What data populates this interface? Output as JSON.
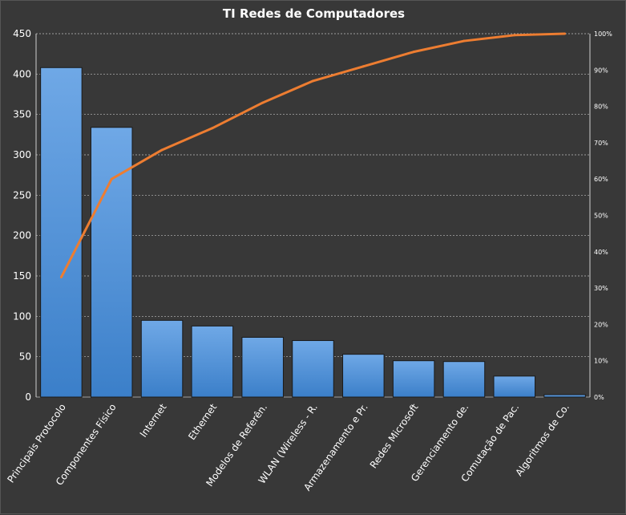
{
  "chart_data": {
    "type": "bar",
    "title": "TI Redes de Computadores",
    "xlabel": "",
    "ylabel": "",
    "categories": [
      "Principais Protocolo",
      "Componentes Físico",
      "Internet",
      "Ethernet",
      "Modelos de Referên.",
      "WLAN (Wireless - R.",
      "Armazenamento e Pr.",
      "Redes Microsoft",
      "Gerenciamento de.",
      "Comutação de Pac.",
      "Algoritmos de Co."
    ],
    "series": [
      {
        "type": "bar",
        "values": [
          408,
          334,
          95,
          88,
          74,
          70,
          53,
          45,
          44,
          26,
          3
        ]
      },
      {
        "type": "line",
        "axis": "right",
        "values": [
          33,
          60,
          68,
          74,
          81,
          87,
          91,
          95,
          98,
          99.6,
          100
        ]
      }
    ],
    "ylim": [
      0,
      450
    ],
    "yticks": [
      0,
      50,
      100,
      150,
      200,
      250,
      300,
      350,
      400,
      450
    ],
    "ylim_right": [
      0,
      100
    ],
    "yticks_right": [
      "0%",
      "10%",
      "20%",
      "30%",
      "40%",
      "50%",
      "60%",
      "70%",
      "80%",
      "90%",
      "100%"
    ],
    "grid": true,
    "colors": {
      "bar": "#4a90d9",
      "line": "#ed7d31",
      "background": "#383838",
      "grid": "#bfbfbf"
    }
  }
}
